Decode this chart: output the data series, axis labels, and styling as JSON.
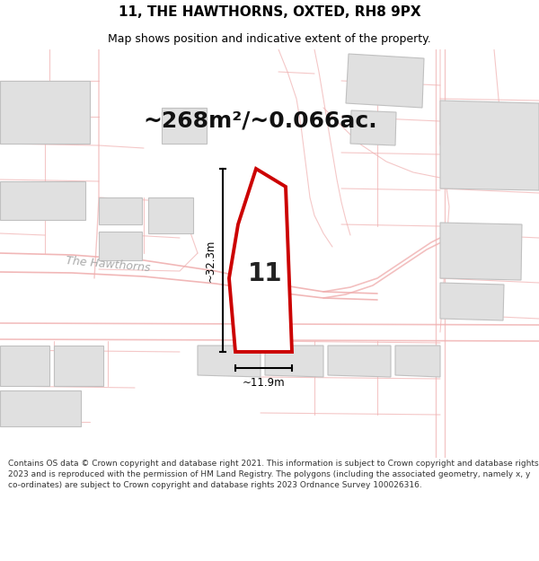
{
  "title": "11, THE HAWTHORNS, OXTED, RH8 9PX",
  "subtitle": "Map shows position and indicative extent of the property.",
  "area_label": "~268m²/~0.066ac.",
  "plot_number": "11",
  "dim_vertical": "~32.3m",
  "dim_horizontal": "~11.9m",
  "footer": "Contains OS data © Crown copyright and database right 2021. This information is subject to Crown copyright and database rights 2023 and is reproduced with the permission of HM Land Registry. The polygons (including the associated geometry, namely x, y co-ordinates) are subject to Crown copyright and database rights 2023 Ordnance Survey 100026316.",
  "bg_color": "#ffffff",
  "map_bg": "#ffffff",
  "road_color": "#f0b0b0",
  "road_outline": "#e08080",
  "plot_fill": "#ffffff",
  "plot_edge": "#cc0000",
  "building_fill": "#e0e0e0",
  "building_edge": "#c0c0c0",
  "annotation_color": "#000000",
  "title_color": "#000000",
  "road_label_color": "#aaaaaa",
  "figsize": [
    6.0,
    6.25
  ],
  "dpi": 100,
  "title_fontsize": 11,
  "subtitle_fontsize": 9,
  "area_fontsize": 18,
  "plot_num_fontsize": 20,
  "dim_fontsize": 8.5,
  "footer_fontsize": 6.5
}
